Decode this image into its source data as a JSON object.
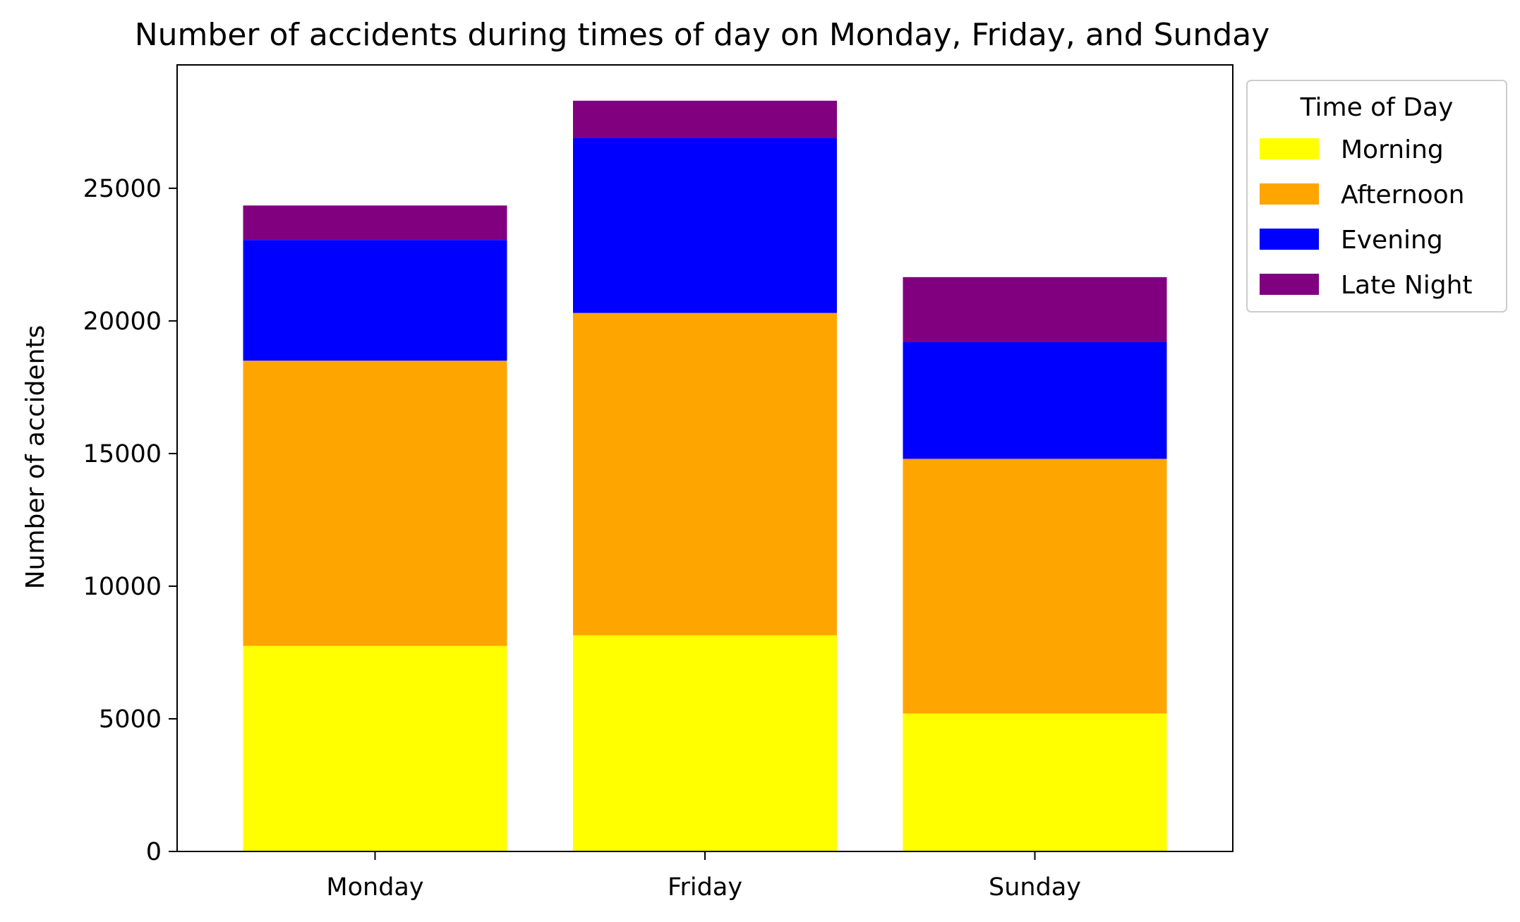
{
  "chart_data": {
    "type": "bar",
    "stacked": true,
    "title": "Number of accidents during times of day on Monday, Friday, and Sunday",
    "xlabel": "",
    "ylabel": "Number of accidents",
    "categories": [
      "Monday",
      "Friday",
      "Sunday"
    ],
    "series": [
      {
        "name": "Morning",
        "color": "#ffff00",
        "values": [
          7750,
          8150,
          5200
        ]
      },
      {
        "name": "Afternoon",
        "color": "#ffa500",
        "values": [
          10750,
          12150,
          9600
        ]
      },
      {
        "name": "Evening",
        "color": "#0000ff",
        "values": [
          4550,
          6600,
          4400
        ]
      },
      {
        "name": "Late Night",
        "color": "#800080",
        "values": [
          1300,
          1400,
          2450
        ]
      }
    ],
    "ylim": [
      0,
      29650
    ],
    "yticks": [
      0,
      5000,
      10000,
      15000,
      20000,
      25000
    ],
    "grid": false,
    "legend": {
      "title": "Time of Day",
      "placement": "outside top-right"
    }
  }
}
